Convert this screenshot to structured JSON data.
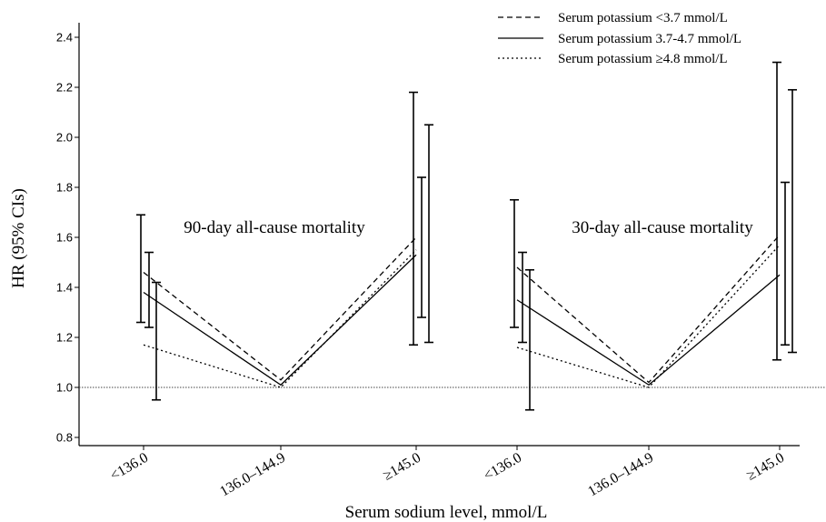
{
  "chart_data": {
    "type": "line",
    "title": "",
    "xlabel": "Serum sodium level, mmol/L",
    "ylabel": "HR (95% CIs)",
    "ylim": [
      0.77,
      2.48
    ],
    "yticks": [
      0.8,
      1.0,
      1.2,
      1.4,
      1.6,
      1.8,
      2.0,
      2.2,
      2.4
    ],
    "ytick_labels": [
      "0.8",
      "1.0",
      "1.2",
      "1.4",
      "1.6",
      "1.8",
      "2.0",
      "2.2",
      "2.4"
    ],
    "reference_line": 1.0,
    "grid": false,
    "legend_position": "top-right",
    "categories": [
      "<136.0",
      "136.0–144.9",
      "≥145.0",
      "<136.0",
      "136.0–144.9",
      "≥145.0"
    ],
    "annotations": [
      "90-day all-cause mortality",
      "30-day all-cause mortality"
    ],
    "series": [
      {
        "name": "Serum potassium <3.7 mmol/L",
        "line_style": "dashed",
        "panels": [
          {
            "values": [
              1.46,
              1.03,
              1.6
            ],
            "ci_lower": [
              1.26,
              null,
              1.17
            ],
            "ci_upper": [
              1.69,
              null,
              2.18
            ]
          },
          {
            "values": [
              1.48,
              1.02,
              1.61
            ],
            "ci_lower": [
              1.24,
              null,
              1.11
            ],
            "ci_upper": [
              1.75,
              null,
              2.3
            ]
          }
        ]
      },
      {
        "name": "Serum potassium 3.7-4.7 mmol/L",
        "line_style": "solid",
        "panels": [
          {
            "values": [
              1.38,
              1.01,
              1.53
            ],
            "ci_lower": [
              1.24,
              null,
              1.28
            ],
            "ci_upper": [
              1.54,
              null,
              1.84
            ]
          },
          {
            "values": [
              1.35,
              1.01,
              1.45
            ],
            "ci_lower": [
              1.18,
              null,
              1.17
            ],
            "ci_upper": [
              1.54,
              null,
              1.82
            ]
          }
        ]
      },
      {
        "name": "Serum potassium ≥4.8 mmol/L",
        "line_style": "dotted",
        "panels": [
          {
            "values": [
              1.17,
              1.0,
              1.55
            ],
            "ci_lower": [
              0.95,
              null,
              1.18
            ],
            "ci_upper": [
              1.42,
              null,
              2.05
            ]
          },
          {
            "values": [
              1.16,
              1.0,
              1.57
            ],
            "ci_lower": [
              0.91,
              null,
              1.14
            ],
            "ci_upper": [
              1.47,
              null,
              2.19
            ]
          }
        ]
      }
    ]
  }
}
